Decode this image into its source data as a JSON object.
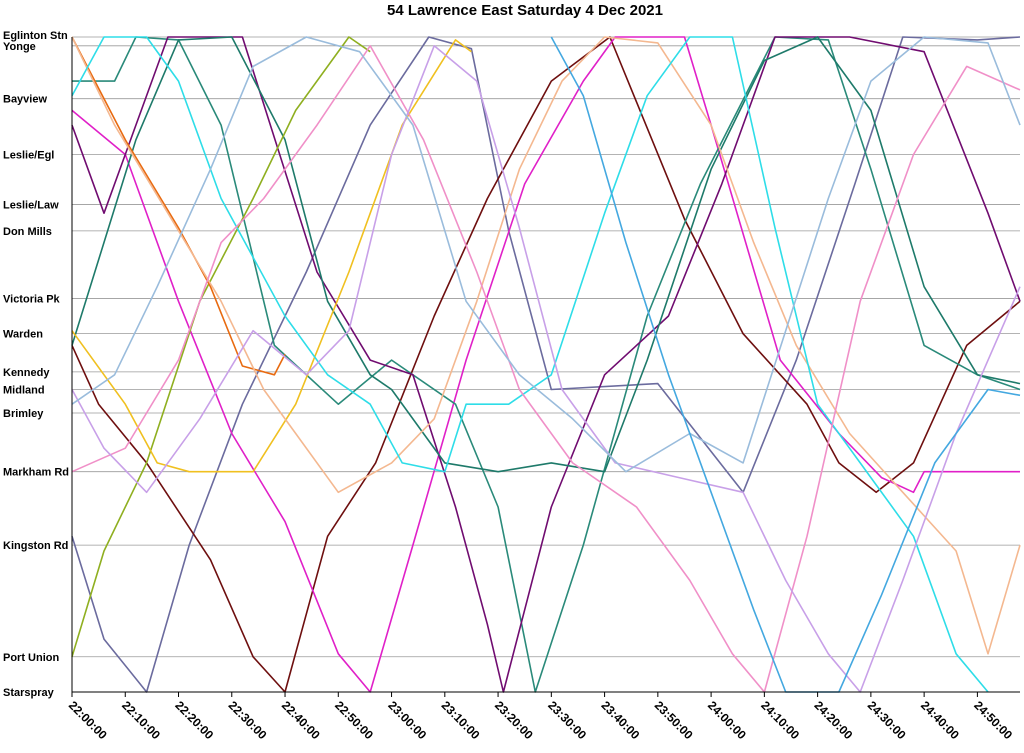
{
  "chart_data": {
    "type": "line",
    "title": "54 Lawrence East Saturday 4 Dec 2021",
    "xlabel": "",
    "ylabel": "",
    "xlim": [
      "22:00:00",
      "24:58:00"
    ],
    "x_ticks": [
      "22:00:00",
      "22:10:00",
      "22:20:00",
      "22:30:00",
      "22:40:00",
      "22:50:00",
      "23:00:00",
      "23:10:00",
      "23:20:00",
      "23:30:00",
      "23:40:00",
      "23:50:00",
      "24:00:00",
      "24:10:00",
      "24:20:00",
      "24:30:00",
      "24:40:00",
      "24:50:00"
    ],
    "stops": [
      {
        "name": "Eglinton Stn",
        "km": 0.0
      },
      {
        "name": "Yonge",
        "km": 0.3
      },
      {
        "name": "Bayview",
        "km": 2.1
      },
      {
        "name": "Leslie/Egl",
        "km": 4.0
      },
      {
        "name": "Leslie/Law",
        "km": 5.7
      },
      {
        "name": "Don Mills",
        "km": 6.6
      },
      {
        "name": "Victoria Pk",
        "km": 8.9
      },
      {
        "name": "Warden",
        "km": 10.1
      },
      {
        "name": "Kennedy",
        "km": 11.4
      },
      {
        "name": "Midland",
        "km": 12.0
      },
      {
        "name": "Brimley",
        "km": 12.8
      },
      {
        "name": "Markham Rd",
        "km": 14.8
      },
      {
        "name": "Kingston Rd",
        "km": 17.3
      },
      {
        "name": "Port Union",
        "km": 21.1
      },
      {
        "name": "Starspray",
        "km": 22.3
      }
    ],
    "grid": true,
    "series": [
      {
        "color": "#6B6B9E",
        "points": [
          [
            "22:00",
            17.0
          ],
          [
            "22:06",
            20.5
          ],
          [
            "22:14",
            22.3
          ],
          [
            "22:22",
            17.3
          ],
          [
            "22:32",
            12.5
          ],
          [
            "22:44",
            8.0
          ],
          [
            "22:56",
            3.0
          ],
          [
            "23:07",
            0.0
          ],
          [
            "23:15",
            0.4
          ],
          [
            "23:22",
            6.6
          ],
          [
            "23:30",
            12.0
          ],
          [
            "23:50",
            11.8
          ],
          [
            "24:06",
            15.5
          ],
          [
            "24:16",
            11.0
          ],
          [
            "24:27",
            5.0
          ],
          [
            "24:36",
            0.0
          ],
          [
            "24:50",
            0.1
          ],
          [
            "24:58",
            0.0
          ]
        ]
      },
      {
        "color": "#6E0F0F",
        "points": [
          [
            "22:00",
            10.5
          ],
          [
            "22:05",
            12.5
          ],
          [
            "22:14",
            14.5
          ],
          [
            "22:26",
            17.8
          ],
          [
            "22:34",
            21.1
          ],
          [
            "22:40",
            22.3
          ],
          [
            "22:48",
            17.0
          ],
          [
            "22:57",
            14.5
          ],
          [
            "23:08",
            9.5
          ],
          [
            "23:18",
            5.5
          ],
          [
            "23:30",
            1.5
          ],
          [
            "23:41",
            0.0
          ],
          [
            "23:55",
            6.2
          ],
          [
            "24:06",
            10.1
          ],
          [
            "24:18",
            12.5
          ],
          [
            "24:24",
            14.5
          ],
          [
            "24:31",
            15.5
          ],
          [
            "24:38",
            14.5
          ],
          [
            "24:48",
            10.5
          ],
          [
            "24:58",
            9.0
          ]
        ]
      },
      {
        "color": "#E020C8",
        "points": [
          [
            "22:00",
            2.5
          ],
          [
            "22:10",
            4.0
          ],
          [
            "22:20",
            9.0
          ],
          [
            "22:30",
            13.5
          ],
          [
            "22:40",
            16.5
          ],
          [
            "22:50",
            21.0
          ],
          [
            "22:56",
            22.3
          ],
          [
            "23:04",
            17.3
          ],
          [
            "23:14",
            11.0
          ],
          [
            "23:25",
            5.0
          ],
          [
            "23:36",
            1.5
          ],
          [
            "23:42",
            0.0
          ],
          [
            "23:55",
            0.0
          ],
          [
            "24:00",
            3.0
          ],
          [
            "24:13",
            11.0
          ],
          [
            "24:24",
            13.5
          ],
          [
            "24:32",
            15.0
          ],
          [
            "24:38",
            15.5
          ],
          [
            "24:40",
            14.8
          ],
          [
            "24:58",
            14.8
          ]
        ]
      },
      {
        "color": "#2A8A7A",
        "points": [
          [
            "22:00",
            1.5
          ],
          [
            "22:08",
            1.5
          ],
          [
            "22:12",
            0.0
          ],
          [
            "22:20",
            0.1
          ],
          [
            "22:28",
            3.0
          ],
          [
            "22:38",
            10.5
          ],
          [
            "22:50",
            12.5
          ],
          [
            "23:00",
            11.0
          ],
          [
            "23:12",
            12.5
          ],
          [
            "23:20",
            16.0
          ],
          [
            "23:27",
            22.3
          ],
          [
            "23:36",
            17.3
          ],
          [
            "23:48",
            9.5
          ],
          [
            "23:58",
            5.0
          ],
          [
            "24:12",
            0.0
          ],
          [
            "24:22",
            0.1
          ],
          [
            "24:30",
            4.5
          ],
          [
            "24:40",
            10.5
          ],
          [
            "24:50",
            11.5
          ],
          [
            "24:58",
            12.0
          ]
        ]
      },
      {
        "color": "#700C70",
        "points": [
          [
            "22:00",
            3.0
          ],
          [
            "22:06",
            6.0
          ],
          [
            "22:12",
            3.0
          ],
          [
            "22:18",
            0.0
          ],
          [
            "22:32",
            0.0
          ],
          [
            "22:46",
            8.0
          ],
          [
            "22:56",
            11.0
          ],
          [
            "23:04",
            11.5
          ],
          [
            "23:12",
            16.0
          ],
          [
            "23:18",
            20.0
          ],
          [
            "23:21",
            22.3
          ],
          [
            "23:30",
            16.0
          ],
          [
            "23:40",
            11.5
          ],
          [
            "23:52",
            9.5
          ],
          [
            "24:02",
            5.0
          ],
          [
            "24:12",
            0.0
          ],
          [
            "24:26",
            0.0
          ],
          [
            "24:40",
            0.5
          ],
          [
            "24:52",
            6.0
          ],
          [
            "24:58",
            9.0
          ]
        ]
      },
      {
        "color": "#1E7A6A",
        "points": [
          [
            "22:00",
            10.5
          ],
          [
            "22:12",
            3.5
          ],
          [
            "22:20",
            0.1
          ],
          [
            "22:30",
            0.0
          ],
          [
            "22:40",
            3.5
          ],
          [
            "22:48",
            9.0
          ],
          [
            "22:56",
            11.5
          ],
          [
            "23:00",
            12.0
          ],
          [
            "23:10",
            14.5
          ],
          [
            "23:20",
            14.8
          ],
          [
            "23:30",
            14.5
          ],
          [
            "23:40",
            14.8
          ],
          [
            "23:48",
            11.0
          ],
          [
            "24:00",
            4.5
          ],
          [
            "24:10",
            0.8
          ],
          [
            "24:20",
            0.0
          ],
          [
            "24:30",
            2.5
          ],
          [
            "24:40",
            8.5
          ],
          [
            "24:50",
            11.5
          ],
          [
            "24:58",
            11.8
          ]
        ]
      },
      {
        "color": "#8FAF20",
        "points": [
          [
            "22:00",
            21.1
          ],
          [
            "22:06",
            17.5
          ],
          [
            "22:14",
            14.5
          ],
          [
            "22:24",
            9.0
          ],
          [
            "22:34",
            5.5
          ],
          [
            "22:42",
            2.5
          ],
          [
            "22:52",
            0.0
          ],
          [
            "22:56",
            0.5
          ]
        ]
      },
      {
        "color": "#F0C020",
        "points": [
          [
            "22:00",
            10.0
          ],
          [
            "22:10",
            12.5
          ],
          [
            "22:16",
            14.5
          ],
          [
            "22:22",
            14.8
          ],
          [
            "22:34",
            14.8
          ],
          [
            "22:42",
            12.5
          ],
          [
            "22:52",
            8.0
          ],
          [
            "23:02",
            3.0
          ],
          [
            "23:12",
            0.1
          ],
          [
            "23:15",
            0.5
          ]
        ]
      },
      {
        "color": "#E86A10",
        "points": [
          [
            "22:00",
            0.0
          ],
          [
            "22:10",
            3.5
          ],
          [
            "22:20",
            6.5
          ],
          [
            "22:26",
            8.5
          ],
          [
            "22:32",
            11.2
          ],
          [
            "22:38",
            11.5
          ],
          [
            "22:40",
            10.8
          ]
        ]
      },
      {
        "color": "#F4B890",
        "points": [
          [
            "22:00",
            0.0
          ],
          [
            "22:08",
            3.0
          ],
          [
            "22:18",
            6.0
          ],
          [
            "22:28",
            9.0
          ],
          [
            "22:36",
            12.0
          ],
          [
            "22:42",
            13.5
          ],
          [
            "22:50",
            15.5
          ],
          [
            "23:00",
            14.5
          ],
          [
            "23:08",
            13.0
          ],
          [
            "23:16",
            9.0
          ],
          [
            "23:24",
            4.5
          ],
          [
            "23:32",
            1.5
          ],
          [
            "23:40",
            0.0
          ],
          [
            "23:50",
            0.2
          ],
          [
            "24:00",
            3.0
          ],
          [
            "24:08",
            7.0
          ],
          [
            "24:16",
            10.5
          ],
          [
            "24:26",
            13.5
          ],
          [
            "24:36",
            15.5
          ],
          [
            "24:46",
            17.5
          ],
          [
            "24:52",
            21.0
          ],
          [
            "24:58",
            17.3
          ]
        ]
      },
      {
        "color": "#2EDDE8",
        "points": [
          [
            "22:00",
            2.0
          ],
          [
            "22:06",
            0.0
          ],
          [
            "22:14",
            0.0
          ],
          [
            "22:20",
            1.5
          ],
          [
            "22:28",
            5.5
          ],
          [
            "22:40",
            9.5
          ],
          [
            "22:48",
            11.5
          ],
          [
            "22:56",
            12.5
          ],
          [
            "23:02",
            14.5
          ],
          [
            "23:10",
            14.8
          ],
          [
            "23:14",
            12.5
          ],
          [
            "23:22",
            12.5
          ],
          [
            "23:30",
            11.5
          ],
          [
            "23:40",
            6.0
          ],
          [
            "23:48",
            2.0
          ],
          [
            "23:56",
            0.0
          ],
          [
            "24:04",
            0.0
          ],
          [
            "24:12",
            6.5
          ],
          [
            "24:20",
            12.5
          ],
          [
            "24:30",
            15.0
          ],
          [
            "24:38",
            17.0
          ],
          [
            "24:46",
            21.0
          ],
          [
            "24:52",
            22.3
          ]
        ]
      },
      {
        "color": "#F090C8",
        "points": [
          [
            "22:00",
            14.8
          ],
          [
            "22:10",
            14.0
          ],
          [
            "22:20",
            11.0
          ],
          [
            "22:28",
            7.0
          ],
          [
            "22:36",
            5.5
          ],
          [
            "22:46",
            3.0
          ],
          [
            "22:56",
            0.3
          ],
          [
            "23:06",
            3.5
          ],
          [
            "23:16",
            8.0
          ],
          [
            "23:24",
            12.0
          ],
          [
            "23:34",
            14.5
          ],
          [
            "23:46",
            16.0
          ],
          [
            "23:56",
            18.5
          ],
          [
            "24:04",
            21.0
          ],
          [
            "24:10",
            22.3
          ],
          [
            "24:18",
            17.0
          ],
          [
            "24:28",
            9.0
          ],
          [
            "24:38",
            4.0
          ],
          [
            "24:48",
            1.0
          ],
          [
            "24:58",
            1.8
          ]
        ]
      },
      {
        "color": "#C8A0E8",
        "points": [
          [
            "22:00",
            12.0
          ],
          [
            "22:06",
            14.0
          ],
          [
            "22:14",
            15.5
          ],
          [
            "22:24",
            13.0
          ],
          [
            "22:34",
            10.0
          ],
          [
            "22:44",
            11.5
          ],
          [
            "22:52",
            10.0
          ],
          [
            "23:00",
            4.0
          ],
          [
            "23:08",
            0.3
          ],
          [
            "23:16",
            1.5
          ],
          [
            "23:24",
            6.5
          ],
          [
            "23:32",
            12.0
          ],
          [
            "23:42",
            14.5
          ],
          [
            "23:54",
            15.0
          ],
          [
            "24:06",
            15.5
          ],
          [
            "24:14",
            18.5
          ],
          [
            "24:22",
            21.0
          ],
          [
            "24:28",
            22.3
          ],
          [
            "24:36",
            18.5
          ],
          [
            "24:46",
            13.5
          ],
          [
            "24:58",
            8.5
          ]
        ]
      },
      {
        "color": "#9ABCDC",
        "points": [
          [
            "22:00",
            12.5
          ],
          [
            "22:08",
            11.5
          ],
          [
            "22:16",
            8.5
          ],
          [
            "22:26",
            4.5
          ],
          [
            "22:34",
            1.0
          ],
          [
            "22:44",
            0.0
          ],
          [
            "22:54",
            0.5
          ],
          [
            "23:04",
            3.0
          ],
          [
            "23:14",
            9.0
          ],
          [
            "23:24",
            11.5
          ],
          [
            "23:34",
            13.0
          ],
          [
            "23:44",
            14.8
          ],
          [
            "23:56",
            13.5
          ],
          [
            "24:06",
            14.5
          ],
          [
            "24:14",
            10.0
          ],
          [
            "24:22",
            5.5
          ],
          [
            "24:30",
            1.5
          ],
          [
            "24:40",
            0.0
          ],
          [
            "24:52",
            0.2
          ],
          [
            "24:58",
            3.0
          ]
        ]
      },
      {
        "color": "#44A8E0",
        "points": [
          [
            "23:30",
            0.0
          ],
          [
            "23:36",
            2.0
          ],
          [
            "23:44",
            7.0
          ],
          [
            "23:52",
            11.5
          ],
          [
            "24:00",
            15.5
          ],
          [
            "24:08",
            19.5
          ],
          [
            "24:14",
            22.3
          ],
          [
            "24:24",
            22.3
          ],
          [
            "24:32",
            19.0
          ],
          [
            "24:42",
            14.5
          ],
          [
            "24:52",
            12.0
          ],
          [
            "24:58",
            12.2
          ]
        ]
      }
    ]
  }
}
